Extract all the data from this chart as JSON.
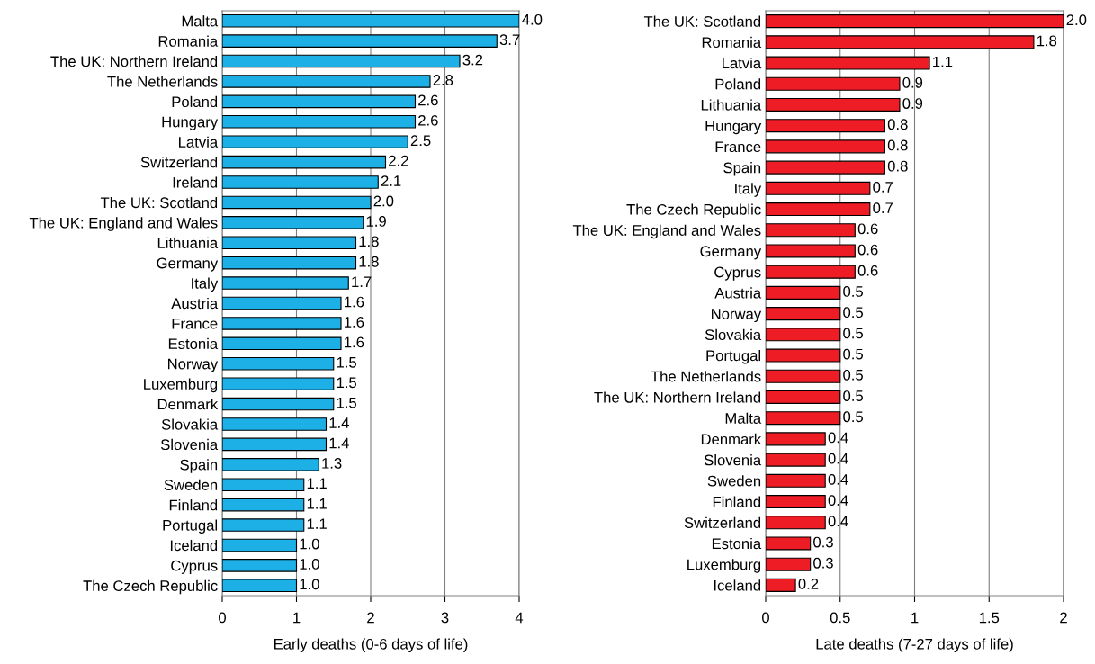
{
  "chart_data": [
    {
      "type": "bar",
      "orientation": "horizontal",
      "xlabel": "Early deaths (0-6 days of life)",
      "categories": [
        "Malta",
        "Romania",
        "The UK: Northern Ireland",
        "The Netherlands",
        "Poland",
        "Hungary",
        "Latvia",
        "Switzerland",
        "Ireland",
        "The UK: Scotland",
        "The UK: England and Wales",
        "Lithuania",
        "Germany",
        "Italy",
        "Austria",
        "France",
        "Estonia",
        "Norway",
        "Luxemburg",
        "Denmark",
        "Slovakia",
        "Slovenia",
        "Spain",
        "Sweden",
        "Finland",
        "Portugal",
        "Iceland",
        "Cyprus",
        "The Czech Republic"
      ],
      "values": [
        4.0,
        3.7,
        3.2,
        2.8,
        2.6,
        2.6,
        2.5,
        2.2,
        2.1,
        2.0,
        1.9,
        1.8,
        1.8,
        1.7,
        1.6,
        1.6,
        1.6,
        1.5,
        1.5,
        1.5,
        1.4,
        1.4,
        1.3,
        1.1,
        1.1,
        1.1,
        1.0,
        1.0,
        1.0
      ],
      "value_labels": [
        "4.0",
        "3.7",
        "3.2",
        "2.8",
        "2.6",
        "2.6",
        "2.5",
        "2.2",
        "2.1",
        "2.0",
        "1.9",
        "1.8",
        "1.8",
        "1.7",
        "1.6",
        "1.6",
        "1.6",
        "1.5",
        "1.5",
        "1.5",
        "1.4",
        "1.4",
        "1.3",
        "1.1",
        "1.1",
        "1.1",
        "1.0",
        "1.0",
        "1.0"
      ],
      "color": "#1cb0e6",
      "xlim": [
        0,
        4
      ],
      "xticks": [
        0,
        1,
        2,
        3,
        4
      ],
      "grid": "x"
    },
    {
      "type": "bar",
      "orientation": "horizontal",
      "xlabel": "Late deaths (7-27 days of life)",
      "categories": [
        "The UK: Scotland",
        "Romania",
        "Latvia",
        "Poland",
        "Lithuania",
        "Hungary",
        "France",
        "Spain",
        "Italy",
        "The Czech Republic",
        "The UK: England and Wales",
        "Germany",
        "Cyprus",
        "Austria",
        "Norway",
        "Slovakia",
        "Portugal",
        "The Netherlands",
        "The UK: Northern Ireland",
        "Malta",
        "Denmark",
        "Slovenia",
        "Sweden",
        "Finland",
        "Switzerland",
        "Estonia",
        "Luxemburg",
        "Iceland"
      ],
      "values": [
        2.0,
        1.8,
        1.1,
        0.9,
        0.9,
        0.8,
        0.8,
        0.8,
        0.7,
        0.7,
        0.6,
        0.6,
        0.6,
        0.5,
        0.5,
        0.5,
        0.5,
        0.5,
        0.5,
        0.5,
        0.4,
        0.4,
        0.4,
        0.4,
        0.4,
        0.3,
        0.3,
        0.2
      ],
      "value_labels": [
        "2.0",
        "1.8",
        "1.1",
        "0.9",
        "0.9",
        "0.8",
        "0.8",
        "0.8",
        "0.7",
        "0.7",
        "0.6",
        "0.6",
        "0.6",
        "0.5",
        "0.5",
        "0.5",
        "0.5",
        "0.5",
        "0.5",
        "0.5",
        "0.4",
        "0.4",
        "0.4",
        "0.4",
        "0.4",
        "0.3",
        "0.3",
        "0.2"
      ],
      "color": "#ee1c25",
      "xlim": [
        0,
        2
      ],
      "xticks": [
        0,
        0.5,
        1,
        1.5,
        2
      ],
      "grid": "x"
    }
  ]
}
